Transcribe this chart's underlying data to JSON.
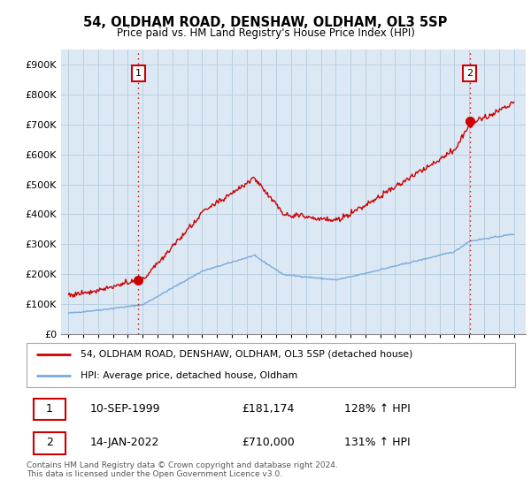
{
  "title": "54, OLDHAM ROAD, DENSHAW, OLDHAM, OL3 5SP",
  "subtitle": "Price paid vs. HM Land Registry's House Price Index (HPI)",
  "sale1_date": "10-SEP-1999",
  "sale1_price": 181174,
  "sale1_label": "128% ↑ HPI",
  "sale2_date": "14-JAN-2022",
  "sale2_price": 710000,
  "sale2_label": "131% ↑ HPI",
  "legend_red": "54, OLDHAM ROAD, DENSHAW, OLDHAM, OL3 5SP (detached house)",
  "legend_blue": "HPI: Average price, detached house, Oldham",
  "footer": "Contains HM Land Registry data © Crown copyright and database right 2024.\nThis data is licensed under the Open Government Licence v3.0.",
  "ylim": [
    0,
    950000
  ],
  "yticks": [
    0,
    100000,
    200000,
    300000,
    400000,
    500000,
    600000,
    700000,
    800000,
    900000
  ],
  "ytick_labels": [
    "£0",
    "£100K",
    "£200K",
    "£300K",
    "£400K",
    "£500K",
    "£600K",
    "£700K",
    "£800K",
    "£900K"
  ],
  "sale1_x": 1999.71,
  "sale2_x": 2022.04,
  "hpi_color": "#7aabdc",
  "price_color": "#cc0000",
  "vline_color": "#cc0000",
  "marker_color": "#cc0000",
  "chart_bg": "#dce9f5",
  "background_color": "#ffffff",
  "grid_color": "#b8cfe0"
}
